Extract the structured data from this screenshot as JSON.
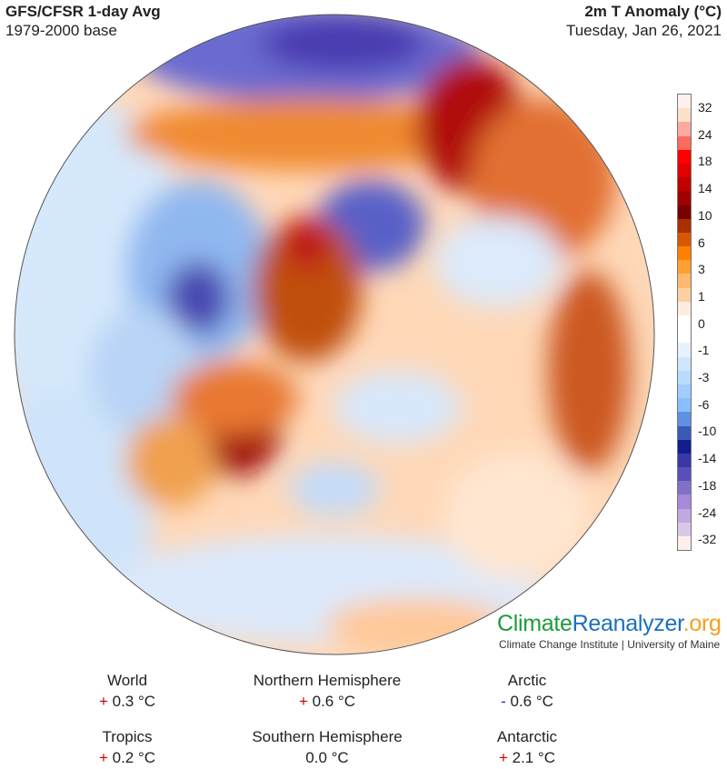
{
  "header": {
    "title": "GFS/CFSR 1-day Avg",
    "base": "1979-2000 base",
    "variable": "2m T Anomaly (°C)",
    "date": "Tuesday, Jan 26, 2021"
  },
  "colorbar": {
    "ticks": [
      "32",
      "24",
      "18",
      "14",
      "10",
      "6",
      "3",
      "1",
      "0",
      "-1",
      "-3",
      "-6",
      "-10",
      "-14",
      "-18",
      "-24",
      "-32"
    ],
    "colors": [
      "#fff0f0",
      "#fde0cc",
      "#ffa8a0",
      "#ff6a60",
      "#ff0000",
      "#e00000",
      "#c00000",
      "#a00000",
      "#7a0000",
      "#a83000",
      "#d85800",
      "#ff8000",
      "#ffa030",
      "#ffb870",
      "#ffd0a0",
      "#ffece0",
      "#ffffff",
      "#ffffff",
      "#e8f2ff",
      "#d0e6ff",
      "#b8dcff",
      "#a0ccff",
      "#88c0ff",
      "#6090e0",
      "#3a5ab8",
      "#101e90",
      "#3838a8",
      "#5850b8",
      "#8070c8",
      "#a888d8",
      "#c0a8e0",
      "#d8c8e8",
      "#ffeeee"
    ]
  },
  "logo": {
    "part1": "Climate",
    "part2": "Reanalyzer",
    ".org": ".org",
    "part3": ".org",
    "subtitle": "Climate Change Institute | University of Maine"
  },
  "stats": [
    {
      "label": "World",
      "sign": "+",
      "value": "0.3 °C"
    },
    {
      "label": "Northern Hemisphere",
      "sign": "+",
      "value": "0.6 °C"
    },
    {
      "label": "Arctic",
      "sign": "-",
      "value": "0.6 °C"
    },
    {
      "label": "Tropics",
      "sign": "+",
      "value": "0.2 °C"
    },
    {
      "label": "Southern Hemisphere",
      "sign": "",
      "value": "0.0 °C"
    },
    {
      "label": "Antarctic",
      "sign": "+",
      "value": "2.1 °C"
    }
  ]
}
